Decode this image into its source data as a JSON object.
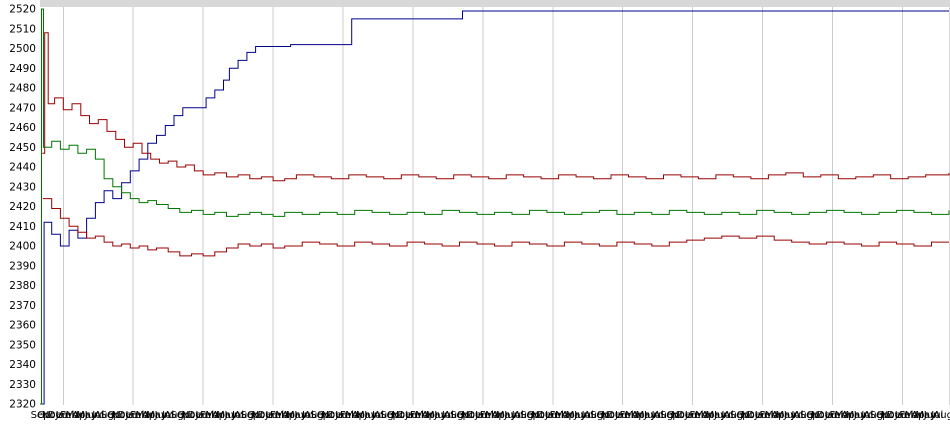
{
  "chart_data": {
    "type": "line",
    "title": "",
    "xlabel": "",
    "ylabel": "",
    "ylim": [
      2320,
      2520
    ],
    "yticks": [
      2320,
      2330,
      2340,
      2350,
      2360,
      2370,
      2380,
      2390,
      2400,
      2410,
      2420,
      2430,
      2440,
      2450,
      2460,
      2470,
      2480,
      2490,
      2500,
      2510,
      2520
    ],
    "x_month_cycle": [
      "Sep",
      "Oct",
      "Nov",
      "Dec",
      "Jan",
      "Feb",
      "Mar",
      "Apr",
      "May",
      "Jun",
      "Jul",
      "Aug"
    ],
    "years": 13,
    "grid_month_offset": 4,
    "grid": "vertical-only",
    "legend": "none",
    "colors": {
      "grid": "#cccccc",
      "frame": "#d8d8d8",
      "background": "#ffffff"
    },
    "series": [
      {
        "name": "blue",
        "color": "#00008b",
        "points": [
          [
            0,
            2320
          ],
          [
            0.7,
            2412
          ],
          [
            2,
            2406
          ],
          [
            3.5,
            2400
          ],
          [
            5,
            2408
          ],
          [
            6.5,
            2404
          ],
          [
            8,
            2414
          ],
          [
            9.5,
            2422
          ],
          [
            11,
            2428
          ],
          [
            12.5,
            2424
          ],
          [
            14,
            2432
          ],
          [
            15.5,
            2438
          ],
          [
            17,
            2444
          ],
          [
            18.5,
            2452
          ],
          [
            20,
            2456
          ],
          [
            21.5,
            2461
          ],
          [
            23,
            2466
          ],
          [
            24.5,
            2470
          ],
          [
            27,
            2470
          ],
          [
            28.5,
            2475
          ],
          [
            30,
            2479
          ],
          [
            31.5,
            2484
          ],
          [
            32.5,
            2490
          ],
          [
            34,
            2494
          ],
          [
            35.5,
            2498
          ],
          [
            37,
            2501
          ],
          [
            42,
            2501
          ],
          [
            43,
            2502
          ],
          [
            52.5,
            2502
          ],
          [
            53.5,
            2515
          ],
          [
            71.5,
            2515
          ],
          [
            72.5,
            2519
          ],
          [
            156,
            2519
          ]
        ]
      },
      {
        "name": "red-upper",
        "color": "#990000",
        "points": [
          [
            0.4,
            2447
          ],
          [
            0.8,
            2508
          ],
          [
            1.4,
            2472
          ],
          [
            2.5,
            2475
          ],
          [
            4,
            2469
          ],
          [
            5.5,
            2472
          ],
          [
            7,
            2466
          ],
          [
            8.5,
            2462
          ],
          [
            10,
            2464
          ],
          [
            11.5,
            2458
          ],
          [
            13,
            2454
          ],
          [
            14.5,
            2450
          ],
          [
            16,
            2452
          ],
          [
            17.5,
            2447
          ],
          [
            19,
            2444
          ],
          [
            20.5,
            2442
          ],
          [
            22,
            2443
          ],
          [
            23.5,
            2440
          ],
          [
            25,
            2441
          ],
          [
            26.5,
            2438
          ],
          [
            28,
            2436
          ],
          [
            30,
            2437
          ],
          [
            32,
            2435
          ],
          [
            34,
            2436
          ],
          [
            36,
            2434
          ],
          [
            38,
            2435
          ],
          [
            40,
            2433
          ],
          [
            42,
            2434
          ],
          [
            44,
            2436
          ],
          [
            47,
            2435
          ],
          [
            50,
            2434
          ],
          [
            53,
            2436
          ],
          [
            56,
            2435
          ],
          [
            59,
            2434
          ],
          [
            62,
            2436
          ],
          [
            65,
            2435
          ],
          [
            68,
            2434
          ],
          [
            71,
            2436
          ],
          [
            74,
            2435
          ],
          [
            77,
            2434
          ],
          [
            80,
            2436
          ],
          [
            83,
            2435
          ],
          [
            86,
            2434
          ],
          [
            89,
            2436
          ],
          [
            92,
            2435
          ],
          [
            95,
            2434
          ],
          [
            98,
            2436
          ],
          [
            101,
            2435
          ],
          [
            104,
            2434
          ],
          [
            107,
            2436
          ],
          [
            110,
            2435
          ],
          [
            113,
            2434
          ],
          [
            116,
            2436
          ],
          [
            119,
            2435
          ],
          [
            122,
            2434
          ],
          [
            125,
            2436
          ],
          [
            128,
            2437
          ],
          [
            131,
            2435
          ],
          [
            134,
            2436
          ],
          [
            137,
            2434
          ],
          [
            140,
            2435
          ],
          [
            143,
            2436
          ],
          [
            146,
            2434
          ],
          [
            149,
            2435
          ],
          [
            152,
            2436
          ],
          [
            156,
            2437
          ]
        ]
      },
      {
        "name": "green",
        "color": "#007700",
        "points": [
          [
            0,
            2320
          ],
          [
            0.25,
            2520
          ],
          [
            0.6,
            2450
          ],
          [
            2,
            2453
          ],
          [
            3.5,
            2449
          ],
          [
            5,
            2451
          ],
          [
            6.5,
            2447
          ],
          [
            8,
            2449
          ],
          [
            9.5,
            2444
          ],
          [
            11,
            2434
          ],
          [
            12.5,
            2430
          ],
          [
            14,
            2427
          ],
          [
            15.5,
            2424
          ],
          [
            17,
            2422
          ],
          [
            18.5,
            2423
          ],
          [
            20,
            2421
          ],
          [
            22,
            2419
          ],
          [
            24,
            2417
          ],
          [
            26,
            2418
          ],
          [
            28,
            2416
          ],
          [
            30,
            2417
          ],
          [
            32,
            2415
          ],
          [
            34,
            2416
          ],
          [
            36,
            2417
          ],
          [
            38,
            2416
          ],
          [
            40,
            2415
          ],
          [
            42,
            2417
          ],
          [
            45,
            2416
          ],
          [
            48,
            2417
          ],
          [
            51,
            2416
          ],
          [
            54,
            2418
          ],
          [
            57,
            2417
          ],
          [
            60,
            2416
          ],
          [
            63,
            2417
          ],
          [
            66,
            2416
          ],
          [
            69,
            2418
          ],
          [
            72,
            2417
          ],
          [
            75,
            2416
          ],
          [
            78,
            2417
          ],
          [
            81,
            2416
          ],
          [
            84,
            2418
          ],
          [
            87,
            2417
          ],
          [
            90,
            2416
          ],
          [
            93,
            2417
          ],
          [
            96,
            2418
          ],
          [
            99,
            2416
          ],
          [
            102,
            2417
          ],
          [
            105,
            2416
          ],
          [
            108,
            2418
          ],
          [
            111,
            2417
          ],
          [
            114,
            2416
          ],
          [
            117,
            2417
          ],
          [
            120,
            2416
          ],
          [
            123,
            2418
          ],
          [
            126,
            2417
          ],
          [
            129,
            2416
          ],
          [
            132,
            2417
          ],
          [
            135,
            2418
          ],
          [
            138,
            2417
          ],
          [
            141,
            2416
          ],
          [
            144,
            2417
          ],
          [
            147,
            2418
          ],
          [
            150,
            2417
          ],
          [
            153,
            2416
          ],
          [
            156,
            2418
          ]
        ]
      },
      {
        "name": "red-lower",
        "color": "#990000",
        "points": [
          [
            0.5,
            2424
          ],
          [
            2,
            2419
          ],
          [
            3.5,
            2414
          ],
          [
            5,
            2410
          ],
          [
            6.5,
            2407
          ],
          [
            8,
            2404
          ],
          [
            9.5,
            2405
          ],
          [
            11,
            2402
          ],
          [
            12.5,
            2400
          ],
          [
            14,
            2401
          ],
          [
            15.5,
            2399
          ],
          [
            17,
            2400
          ],
          [
            18.5,
            2398
          ],
          [
            20,
            2399
          ],
          [
            22,
            2397
          ],
          [
            24,
            2395
          ],
          [
            26,
            2396
          ],
          [
            28,
            2395
          ],
          [
            30,
            2397
          ],
          [
            32,
            2399
          ],
          [
            34,
            2401
          ],
          [
            36,
            2400
          ],
          [
            38,
            2401
          ],
          [
            40,
            2399
          ],
          [
            42,
            2400
          ],
          [
            45,
            2402
          ],
          [
            48,
            2401
          ],
          [
            51,
            2400
          ],
          [
            54,
            2402
          ],
          [
            57,
            2401
          ],
          [
            60,
            2400
          ],
          [
            63,
            2402
          ],
          [
            66,
            2401
          ],
          [
            69,
            2400
          ],
          [
            72,
            2402
          ],
          [
            75,
            2401
          ],
          [
            78,
            2400
          ],
          [
            81,
            2402
          ],
          [
            84,
            2401
          ],
          [
            87,
            2400
          ],
          [
            90,
            2402
          ],
          [
            93,
            2401
          ],
          [
            96,
            2400
          ],
          [
            99,
            2402
          ],
          [
            102,
            2401
          ],
          [
            105,
            2400
          ],
          [
            108,
            2402
          ],
          [
            111,
            2403
          ],
          [
            114,
            2404
          ],
          [
            117,
            2405
          ],
          [
            120,
            2404
          ],
          [
            123,
            2405
          ],
          [
            126,
            2403
          ],
          [
            129,
            2402
          ],
          [
            132,
            2401
          ],
          [
            135,
            2402
          ],
          [
            138,
            2401
          ],
          [
            141,
            2400
          ],
          [
            144,
            2402
          ],
          [
            147,
            2401
          ],
          [
            150,
            2400
          ],
          [
            153,
            2402
          ],
          [
            156,
            2402
          ]
        ]
      }
    ]
  }
}
